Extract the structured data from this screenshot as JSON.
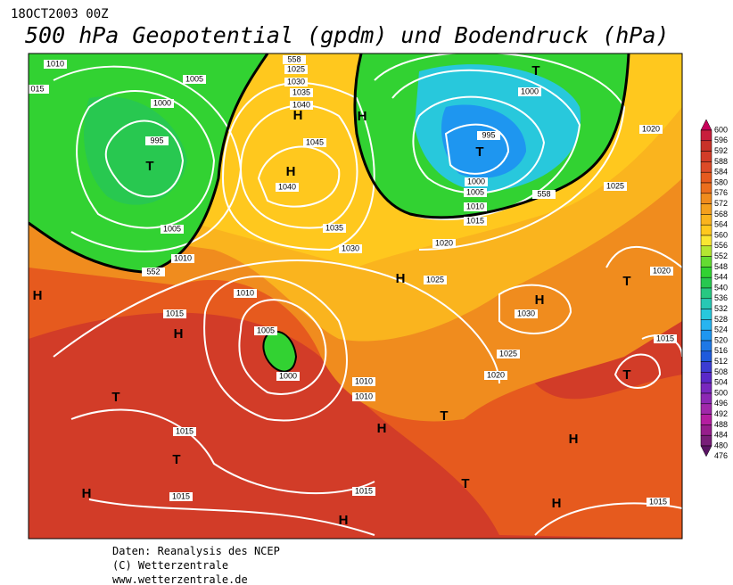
{
  "header": {
    "date": "18OCT2003 00Z",
    "title": "500 hPa Geopotential (gpdm) und Bodendruck (hPa)"
  },
  "colorbar": {
    "levels": [
      "600",
      "596",
      "592",
      "588",
      "584",
      "580",
      "576",
      "572",
      "568",
      "564",
      "560",
      "556",
      "552",
      "548",
      "544",
      "540",
      "536",
      "532",
      "528",
      "524",
      "520",
      "516",
      "512",
      "508",
      "504",
      "500",
      "496",
      "492",
      "488",
      "484",
      "480",
      "476"
    ],
    "colors": [
      "#c8005a",
      "#c81e3c",
      "#c83228",
      "#d23c28",
      "#dc4b28",
      "#e65a1e",
      "#eb6e1e",
      "#f08c1e",
      "#f5a01e",
      "#fab41e",
      "#ffc81e",
      "#fae632",
      "#b4e632",
      "#64dc32",
      "#32d232",
      "#28c850",
      "#28c882",
      "#28c8b4",
      "#28c8dc",
      "#28b4f0",
      "#1e96f0",
      "#1e78e6",
      "#1e5adc",
      "#3c3cd2",
      "#5a28c8",
      "#7828be",
      "#8c28b4",
      "#a028aa",
      "#b41ea0",
      "#961e8c",
      "#781e78",
      "#5a1464"
    ]
  },
  "map_labels": [
    "1010",
    "015",
    "1005",
    "1000",
    "995",
    "T",
    "1005",
    "1010",
    "552",
    "558",
    "1025",
    "1030",
    "1035",
    "1040",
    "H",
    "H",
    "1045",
    "H",
    "1040",
    "1035",
    "1030",
    "T",
    "1000",
    "995",
    "T",
    "1000",
    "1005",
    "1010",
    "1015",
    "558",
    "1020",
    "1025",
    "1020",
    "1025",
    "1020",
    "T",
    "H",
    "H",
    "1030",
    "1025",
    "1020",
    "1010",
    "1015",
    "H",
    "1005",
    "1000",
    "1010",
    "1010",
    "T",
    "T",
    "H",
    "1015",
    "T",
    "H",
    "T",
    "H",
    "1015",
    "1015",
    "H",
    "H",
    "1015",
    "T",
    "1015",
    "H"
  ],
  "footer": {
    "lines": [
      "Daten: Reanalysis des NCEP",
      "(C) Wetterzentrale",
      "www.wetterzentrale.de"
    ]
  }
}
